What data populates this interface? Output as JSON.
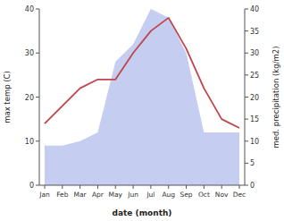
{
  "chart_data": {
    "type": "line",
    "xlabel": "date (month)",
    "ylabel": "max temp (C)",
    "y2label": "med. precipitation (kg/m2)",
    "categories": [
      "Jan",
      "Feb",
      "Mar",
      "Apr",
      "May",
      "Jun",
      "Jul",
      "Aug",
      "Sep",
      "Oct",
      "Nov",
      "Dec"
    ],
    "series": [
      {
        "type": "area",
        "axis": "y2",
        "color": "#c5cdf0",
        "values": [
          9,
          9,
          10,
          12,
          28,
          32,
          40,
          38,
          30,
          12,
          12,
          12
        ]
      },
      {
        "type": "line",
        "color": "#c0454a",
        "values": [
          14,
          18,
          22,
          24,
          24,
          30,
          35,
          38,
          31,
          22,
          15,
          13
        ]
      }
    ],
    "ylim": [
      0,
      40
    ],
    "yticks": [
      0,
      10,
      20,
      30,
      40
    ],
    "y2lim": [
      0,
      40
    ],
    "y2ticks": [
      0,
      5,
      10,
      15,
      20,
      25,
      30,
      35,
      40
    ],
    "grid": false
  }
}
